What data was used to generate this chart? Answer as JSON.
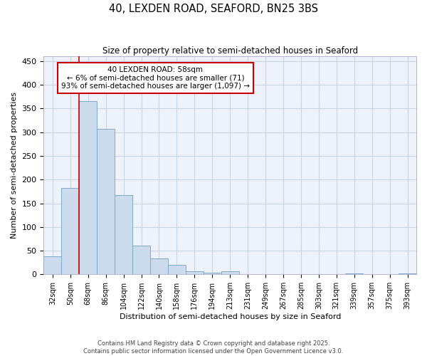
{
  "title": "40, LEXDEN ROAD, SEAFORD, BN25 3BS",
  "subtitle": "Size of property relative to semi-detached houses in Seaford",
  "xlabel": "Distribution of semi-detached houses by size in Seaford",
  "ylabel": "Number of semi-detached properties",
  "categories": [
    "32sqm",
    "50sqm",
    "68sqm",
    "86sqm",
    "104sqm",
    "122sqm",
    "140sqm",
    "158sqm",
    "176sqm",
    "194sqm",
    "213sqm",
    "231sqm",
    "249sqm",
    "267sqm",
    "285sqm",
    "303sqm",
    "321sqm",
    "339sqm",
    "357sqm",
    "375sqm",
    "393sqm"
  ],
  "values": [
    38,
    183,
    365,
    307,
    168,
    60,
    33,
    20,
    7,
    4,
    7,
    1,
    1,
    1,
    1,
    0,
    0,
    2,
    0,
    0,
    2
  ],
  "bar_color": "#cddcec",
  "bar_edge_color": "#7aaac8",
  "grid_color": "#c8d4e8",
  "background_color": "#eef2fb",
  "red_line_x": 1.5,
  "annotation_text": "40 LEXDEN ROAD: 58sqm\n← 6% of semi-detached houses are smaller (71)\n93% of semi-detached houses are larger (1,097) →",
  "annotation_box_color": "#ffffff",
  "annotation_border_color": "#cc0000",
  "footer_line1": "Contains HM Land Registry data © Crown copyright and database right 2025.",
  "footer_line2": "Contains public sector information licensed under the Open Government Licence v3.0.",
  "ylim": [
    0,
    460
  ],
  "yticks": [
    0,
    50,
    100,
    150,
    200,
    250,
    300,
    350,
    400,
    450
  ],
  "figsize": [
    6.0,
    5.0
  ],
  "dpi": 100
}
